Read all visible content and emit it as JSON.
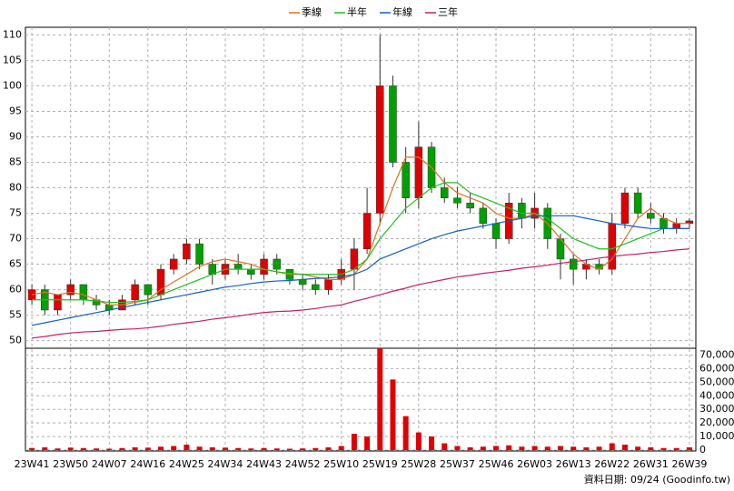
{
  "chart_data": [
    {
      "type": "candlestick",
      "categories": [
        "23W41",
        null,
        null,
        "23W50",
        null,
        null,
        "24W07",
        null,
        null,
        "24W16",
        null,
        null,
        "24W25",
        null,
        null,
        "24W34",
        null,
        null,
        "24W43",
        null,
        null,
        "24W52",
        null,
        null,
        "25W10",
        null,
        null,
        "25W19",
        null,
        null,
        "25W28",
        null,
        null,
        "25W37",
        null,
        null,
        "25W46",
        null,
        null,
        "26W03",
        null,
        null,
        "26W13",
        null,
        null,
        "26W22",
        null,
        null,
        "26W31",
        null,
        null,
        "26W39"
      ],
      "open": [
        58,
        60,
        56,
        59,
        61,
        58,
        57,
        56,
        58,
        61,
        59,
        64,
        66,
        69,
        65,
        63,
        65,
        64,
        63,
        66,
        64,
        62,
        61,
        60,
        62,
        64,
        68,
        75,
        100,
        85,
        78,
        88,
        80,
        78,
        77,
        76,
        73,
        70,
        77,
        74,
        76,
        70,
        66,
        64,
        65,
        64,
        73,
        79,
        75,
        74,
        72,
        73
      ],
      "high": [
        61,
        61,
        59,
        62,
        61,
        59,
        58,
        59,
        62,
        61,
        65,
        67,
        70,
        70,
        66,
        66,
        67,
        65,
        67,
        67,
        64,
        63,
        62,
        63,
        66,
        70,
        80,
        110,
        102,
        88,
        93,
        89,
        82,
        80,
        79,
        77,
        74,
        79,
        78,
        79,
        77,
        71,
        67,
        66,
        66,
        75,
        80,
        80,
        77,
        75,
        74,
        74
      ],
      "low": [
        57,
        55,
        55,
        58,
        57,
        56,
        55,
        56,
        57,
        57,
        58,
        63,
        65,
        64,
        61,
        62,
        63,
        62,
        62,
        63,
        61,
        60,
        59,
        59,
        61,
        60,
        67,
        73,
        84,
        75,
        76,
        79,
        77,
        76,
        75,
        72,
        68,
        69,
        72,
        72,
        68,
        62,
        61,
        62,
        63,
        63,
        72,
        74,
        73,
        71,
        71,
        72
      ],
      "close": [
        60,
        56,
        59,
        61,
        58,
        57,
        56,
        58,
        61,
        59,
        64,
        66,
        69,
        65,
        63,
        65,
        64,
        63,
        66,
        64,
        62,
        61,
        60,
        62,
        64,
        68,
        75,
        100,
        85,
        78,
        88,
        80,
        78,
        77,
        76,
        73,
        70,
        77,
        74,
        76,
        70,
        66,
        64,
        65,
        64,
        73,
        79,
        75,
        74,
        72,
        73,
        73.5
      ],
      "up_color": "#e00000",
      "down_color": "#00a000",
      "series": [
        {
          "name": "季線",
          "color": "#e07020",
          "values": [
            59,
            59.5,
            59,
            59.5,
            59,
            58,
            57,
            57,
            57.5,
            58,
            60,
            61.5,
            63,
            64.5,
            65.5,
            66,
            65.5,
            65,
            64,
            63.5,
            63,
            63,
            62.5,
            62,
            62,
            63,
            66,
            73,
            80,
            86,
            86,
            84,
            81,
            79,
            78,
            77,
            75,
            74,
            74,
            75,
            73,
            70,
            67,
            65,
            64,
            66,
            70,
            74,
            76,
            74,
            73,
            73
          ]
        },
        {
          "name": "半年",
          "color": "#20c020",
          "values": [
            58,
            58,
            58,
            58,
            58,
            57.8,
            57.5,
            57.5,
            57.7,
            58,
            59,
            60,
            61,
            62,
            63,
            64,
            64,
            64,
            64,
            63.5,
            63.2,
            63,
            63,
            63,
            63,
            64,
            66,
            70,
            73,
            76,
            78,
            80,
            81,
            81,
            79,
            78,
            77,
            76,
            75,
            75,
            74,
            72,
            70,
            69,
            68,
            68,
            69,
            70,
            71,
            72,
            72,
            72
          ]
        },
        {
          "name": "年線",
          "color": "#1060c0",
          "values": [
            53,
            53.5,
            54,
            54.5,
            55,
            55.5,
            56,
            56.5,
            57,
            57.5,
            58,
            58.5,
            59,
            59.5,
            60,
            60.5,
            60.8,
            61.2,
            61.5,
            61.7,
            61.8,
            62,
            62.2,
            62.3,
            62.5,
            63,
            64,
            66,
            67,
            68,
            69,
            70,
            70.8,
            71.5,
            72,
            72.5,
            73,
            73.5,
            74,
            74.5,
            74.5,
            74.5,
            74.5,
            74,
            73.5,
            73,
            72.7,
            72.3,
            72,
            72,
            72,
            72
          ]
        },
        {
          "name": "三年",
          "color": "#c0206a",
          "values": [
            50.5,
            50.8,
            51.2,
            51.5,
            51.7,
            51.8,
            52,
            52.2,
            52.3,
            52.5,
            52.8,
            53.2,
            53.5,
            53.8,
            54.2,
            54.5,
            54.8,
            55.2,
            55.5,
            55.7,
            55.8,
            56,
            56.3,
            56.7,
            57,
            57.7,
            58.3,
            59,
            59.7,
            60.3,
            61,
            61.5,
            62,
            62.5,
            62.8,
            63.2,
            63.5,
            63.8,
            64.2,
            64.5,
            64.8,
            65.2,
            65.5,
            65.8,
            66.2,
            66.5,
            66.8,
            67,
            67.3,
            67.5,
            67.8,
            68
          ]
        }
      ],
      "ylim": [
        48.5,
        111.5
      ],
      "yticks": [
        50,
        55,
        60,
        65,
        70,
        75,
        80,
        85,
        90,
        95,
        100,
        105,
        110
      ],
      "grid": true,
      "legend": "top"
    },
    {
      "type": "bar",
      "color": "#e00000",
      "values": [
        1500,
        2000,
        1200,
        1800,
        1500,
        1200,
        1000,
        1500,
        2000,
        1800,
        2500,
        3000,
        4000,
        2500,
        2000,
        1800,
        1500,
        1200,
        1500,
        1200,
        1000,
        1200,
        1500,
        2000,
        3000,
        12000,
        10000,
        75000,
        52000,
        25000,
        13000,
        10000,
        5000,
        3000,
        2000,
        2500,
        3000,
        3500,
        2500,
        3000,
        2500,
        3000,
        2500,
        2000,
        2500,
        5000,
        4000,
        2500,
        2000,
        1500,
        1500,
        2000
      ],
      "ylim": [
        0,
        75000
      ],
      "yticks": [
        0,
        {
          "value": 10000,
          "label": "10,000"
        },
        {
          "value": 20000,
          "label": "20,000"
        },
        {
          "value": 30000,
          "label": "30,000"
        },
        {
          "value": 40000,
          "label": "40,000"
        },
        {
          "value": 50000,
          "label": "50,000"
        },
        {
          "value": 60000,
          "label": "60,000"
        },
        {
          "value": 70000,
          "label": "70,000"
        }
      ],
      "grid": true
    }
  ],
  "footer": "資料日期: 09/24 (Goodinfo.tw)"
}
